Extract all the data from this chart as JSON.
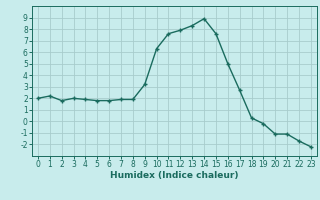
{
  "x": [
    0,
    1,
    2,
    3,
    4,
    5,
    6,
    7,
    8,
    9,
    10,
    11,
    12,
    13,
    14,
    15,
    16,
    17,
    18,
    19,
    20,
    21,
    22,
    23
  ],
  "y": [
    2.0,
    2.2,
    1.8,
    2.0,
    1.9,
    1.8,
    1.8,
    1.9,
    1.9,
    3.2,
    6.3,
    7.6,
    7.9,
    8.3,
    8.9,
    7.6,
    5.0,
    2.7,
    0.3,
    -0.2,
    -1.1,
    -1.1,
    -1.7,
    -2.2
  ],
  "xlabel": "Humidex (Indice chaleur)",
  "xlim": [
    -0.5,
    23.5
  ],
  "ylim": [
    -3,
    10
  ],
  "yticks": [
    -2,
    -1,
    0,
    1,
    2,
    3,
    4,
    5,
    6,
    7,
    8,
    9
  ],
  "xticks": [
    0,
    1,
    2,
    3,
    4,
    5,
    6,
    7,
    8,
    9,
    10,
    11,
    12,
    13,
    14,
    15,
    16,
    17,
    18,
    19,
    20,
    21,
    22,
    23
  ],
  "line_color": "#1a6b5e",
  "bg_color": "#c8ecec",
  "grid_color": "#a8cccc",
  "marker": "+",
  "tick_fontsize": 5.5,
  "xlabel_fontsize": 6.5,
  "line_width": 1.0,
  "marker_size": 3.5
}
